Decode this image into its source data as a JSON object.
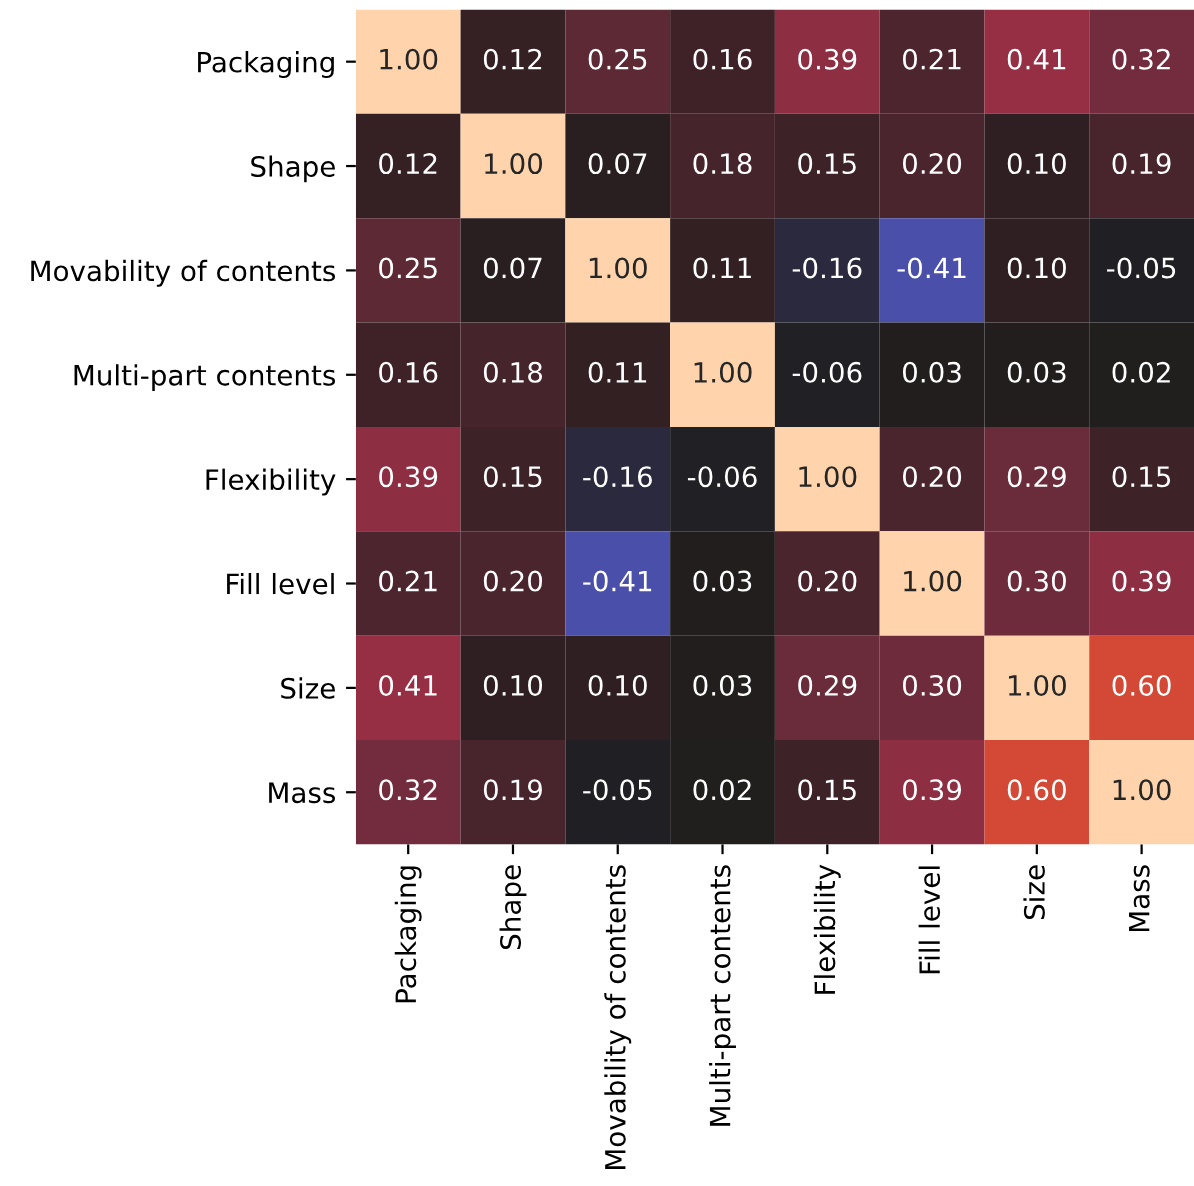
{
  "chart_data": {
    "type": "heatmap",
    "categories": [
      "Packaging",
      "Shape",
      "Movability of contents",
      "Multi-part contents",
      "Flexibility",
      "Fill level",
      "Size",
      "Mass"
    ],
    "y_categories": [
      "Packaging",
      "Shape",
      "Movability of contents",
      "Multi-part contents",
      "Flexibility",
      "Fill level",
      "Size",
      "Mass"
    ],
    "cells": [
      [
        1.0,
        0.12,
        0.25,
        0.16,
        0.39,
        0.21,
        0.41,
        0.32
      ],
      [
        0.12,
        1.0,
        0.07,
        0.18,
        0.15,
        0.2,
        0.1,
        0.19
      ],
      [
        0.25,
        0.07,
        1.0,
        0.11,
        -0.16,
        -0.41,
        0.1,
        -0.05
      ],
      [
        0.16,
        0.18,
        0.11,
        1.0,
        -0.06,
        0.03,
        0.03,
        0.02
      ],
      [
        0.39,
        0.15,
        -0.16,
        -0.06,
        1.0,
        0.2,
        0.29,
        0.15
      ],
      [
        0.21,
        0.2,
        -0.41,
        0.03,
        0.2,
        1.0,
        0.3,
        0.39
      ],
      [
        0.41,
        0.1,
        0.1,
        0.03,
        0.29,
        0.3,
        1.0,
        0.6
      ],
      [
        0.32,
        0.19,
        -0.05,
        0.02,
        0.15,
        0.39,
        0.6,
        1.0
      ]
    ],
    "cell_labels": [
      [
        "1.00",
        "0.12",
        "0.25",
        "0.16",
        "0.39",
        "0.21",
        "0.41",
        "0.32"
      ],
      [
        "0.12",
        "1.00",
        "0.07",
        "0.18",
        "0.15",
        "0.20",
        "0.10",
        "0.19"
      ],
      [
        "0.25",
        "0.07",
        "1.00",
        "0.11",
        "-0.16",
        "-0.41",
        "0.10",
        "-0.05"
      ],
      [
        "0.16",
        "0.18",
        "0.11",
        "1.00",
        "-0.06",
        "0.03",
        "0.03",
        "0.02"
      ],
      [
        "0.39",
        "0.15",
        "-0.16",
        "-0.06",
        "1.00",
        "0.20",
        "0.29",
        "0.15"
      ],
      [
        "0.21",
        "0.20",
        "-0.41",
        "0.03",
        "0.20",
        "1.00",
        "0.30",
        "0.39"
      ],
      [
        "0.41",
        "0.10",
        "0.10",
        "0.03",
        "0.29",
        "0.30",
        "1.00",
        "0.60"
      ],
      [
        "0.32",
        "0.19",
        "-0.05",
        "0.02",
        "0.15",
        "0.39",
        "0.60",
        "1.00"
      ]
    ]
  }
}
